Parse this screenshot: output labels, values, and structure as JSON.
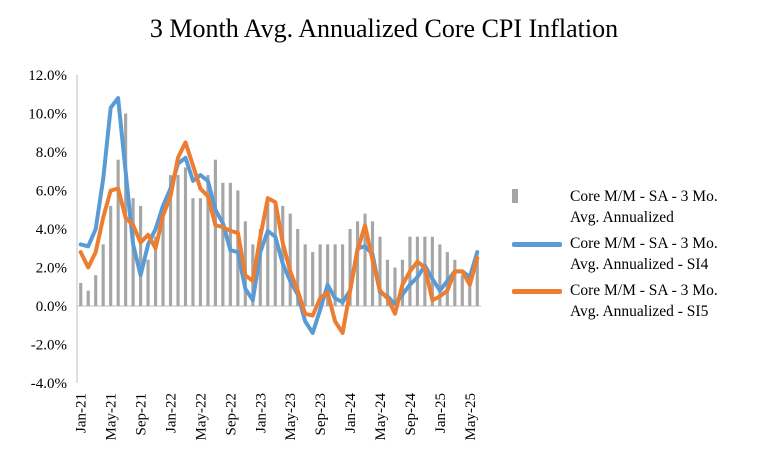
{
  "chart_data": {
    "type": "bar+line",
    "title": "3 Month Avg. Annualized Core CPI Inflation",
    "xlabel": "",
    "ylabel": "",
    "ylim": [
      -4.0,
      12.0
    ],
    "y_ticks": [
      "-4.0%",
      "-2.0%",
      "0.0%",
      "2.0%",
      "4.0%",
      "6.0%",
      "8.0%",
      "10.0%",
      "12.0%"
    ],
    "x_tick_labels": [
      "Jan-21",
      "May-21",
      "Sep-21",
      "Jan-22",
      "May-22",
      "Sep-22",
      "Jan-23",
      "May-23",
      "Sep-23",
      "Jan-24",
      "May-24",
      "Sep-24",
      "Jan-25",
      "May-25"
    ],
    "categories": [
      "Jan-21",
      "Feb-21",
      "Mar-21",
      "Apr-21",
      "May-21",
      "Jun-21",
      "Jul-21",
      "Aug-21",
      "Sep-21",
      "Oct-21",
      "Nov-21",
      "Dec-21",
      "Jan-22",
      "Feb-22",
      "Mar-22",
      "Apr-22",
      "May-22",
      "Jun-22",
      "Jul-22",
      "Aug-22",
      "Sep-22",
      "Oct-22",
      "Nov-22",
      "Dec-22",
      "Jan-23",
      "Feb-23",
      "Mar-23",
      "Apr-23",
      "May-23",
      "Jun-23",
      "Jul-23",
      "Aug-23",
      "Sep-23",
      "Oct-23",
      "Nov-23",
      "Dec-23",
      "Jan-24",
      "Feb-24",
      "Mar-24",
      "Apr-24",
      "May-24",
      "Jun-24",
      "Jul-24",
      "Aug-24",
      "Sep-24",
      "Oct-24",
      "Nov-24",
      "Dec-24",
      "Jan-25",
      "Feb-25",
      "Mar-25",
      "Apr-25",
      "May-25",
      "Jun-25"
    ],
    "series": [
      {
        "name": "Core M/M - SA - 3 Mo. Avg. Annualized",
        "kind": "bar",
        "color": "#a6a6a6",
        "values": [
          1.2,
          0.8,
          1.6,
          3.2,
          5.2,
          7.6,
          10.0,
          5.6,
          5.2,
          2.4,
          3.6,
          5.2,
          6.8,
          6.8,
          7.2,
          5.6,
          5.6,
          6.8,
          7.6,
          6.4,
          6.4,
          6.0,
          4.4,
          3.2,
          4.0,
          5.6,
          5.2,
          5.2,
          4.8,
          4.0,
          3.2,
          2.8,
          3.2,
          3.2,
          3.2,
          3.2,
          4.0,
          4.4,
          4.8,
          4.4,
          3.6,
          2.4,
          2.0,
          2.4,
          3.6,
          3.6,
          3.6,
          3.6,
          3.2,
          2.8,
          2.4,
          1.6,
          1.6,
          2.4
        ]
      },
      {
        "name": "Core M/M - SA - 3 Mo. Avg. Annualized - SI4",
        "kind": "line",
        "color": "#5b9bd5",
        "values": [
          3.2,
          3.1,
          4.0,
          6.6,
          10.3,
          10.8,
          7.0,
          3.2,
          1.6,
          3.2,
          4.0,
          5.2,
          6.1,
          7.4,
          7.7,
          6.5,
          6.8,
          6.5,
          5.0,
          4.3,
          2.9,
          2.8,
          0.9,
          0.3,
          2.8,
          3.9,
          3.6,
          2.2,
          1.3,
          0.6,
          -0.8,
          -1.4,
          -0.2,
          1.1,
          0.4,
          0.2,
          0.8,
          3.0,
          3.1,
          2.7,
          0.7,
          0.5,
          0.1,
          0.6,
          1.1,
          1.5,
          2.1,
          1.4,
          0.8,
          1.3,
          1.8,
          1.8,
          1.5,
          2.8
        ]
      },
      {
        "name": "Core M/M - SA - 3 Mo. Avg. Annualized - SI5",
        "kind": "line",
        "color": "#ed7d31",
        "values": [
          2.8,
          2.0,
          2.8,
          4.6,
          6.0,
          6.1,
          4.6,
          4.2,
          3.3,
          3.7,
          3.0,
          4.7,
          5.7,
          7.7,
          8.5,
          7.3,
          6.1,
          5.7,
          4.2,
          4.1,
          3.9,
          3.8,
          1.6,
          1.3,
          3.6,
          5.6,
          5.4,
          3.3,
          1.8,
          0.8,
          -0.4,
          -0.5,
          0.4,
          0.7,
          -0.8,
          -1.4,
          0.8,
          2.9,
          4.2,
          2.4,
          0.8,
          0.4,
          -0.4,
          1.1,
          1.8,
          2.3,
          2.0,
          0.3,
          0.5,
          0.8,
          1.8,
          1.8,
          1.1,
          2.5
        ]
      }
    ],
    "legend": {
      "position": "right",
      "items": [
        {
          "line1": "Core M/M - SA - 3 Mo.",
          "line2": "Avg. Annualized"
        },
        {
          "line1": "Core M/M - SA - 3 Mo.",
          "line2": "Avg. Annualized - SI4"
        },
        {
          "line1": "Core M/M - SA - 3 Mo.",
          "line2": "Avg. Annualized - SI5"
        }
      ]
    },
    "grid": false
  }
}
